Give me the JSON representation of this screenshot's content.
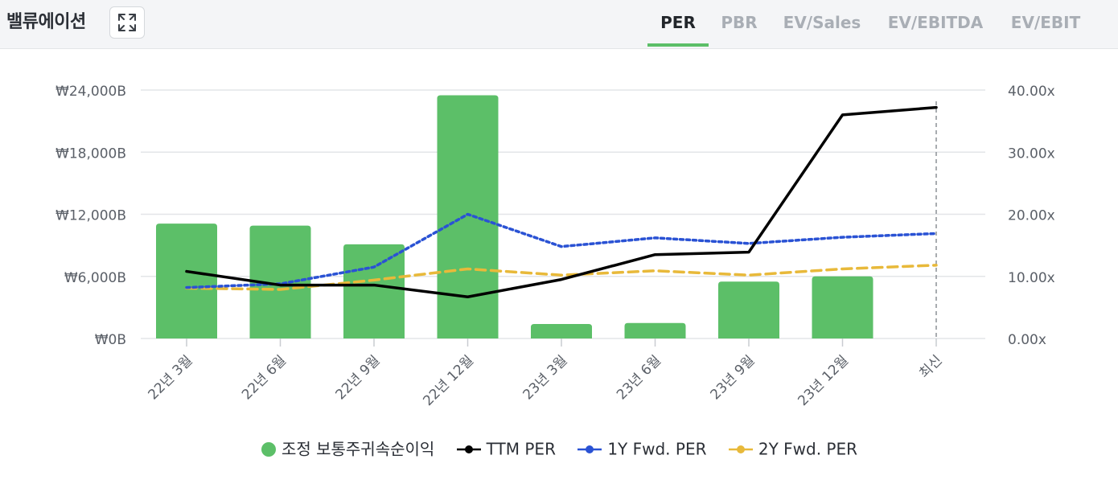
{
  "header": {
    "title": "밸류에이션",
    "tabs": [
      {
        "label": "PER",
        "active": true
      },
      {
        "label": "PBR",
        "active": false
      },
      {
        "label": "EV/Sales",
        "active": false
      },
      {
        "label": "EV/EBITDA",
        "active": false
      },
      {
        "label": "EV/EBIT",
        "active": false
      }
    ]
  },
  "colors": {
    "bar": "#5cbf68",
    "ttm": "#000000",
    "fwd1": "#2a52d4",
    "fwd2": "#e8b93a",
    "grid": "#e3e5e8",
    "axis_text": "#5b6068"
  },
  "chart_data": {
    "type": "bar",
    "categories": [
      "22년 3월",
      "22년 6월",
      "22년 9월",
      "22년 12월",
      "23년 3월",
      "23년 6월",
      "23년 9월",
      "23년 12월",
      "최신"
    ],
    "left_axis": {
      "ticks": [
        "₩0B",
        "₩6,000B",
        "₩12,000B",
        "₩18,000B",
        "₩24,000B"
      ],
      "range": [
        0,
        24000
      ]
    },
    "right_axis": {
      "ticks": [
        "0.00x",
        "10.00x",
        "20.00x",
        "30.00x",
        "40.00x"
      ],
      "range": [
        0,
        40
      ]
    },
    "grid": true,
    "legend_position": "bottom-center",
    "series": [
      {
        "name": "조정 보통주귀속순이익",
        "type": "bar",
        "axis": "left",
        "values": [
          11100,
          10900,
          9100,
          23500,
          1400,
          1500,
          5500,
          6000,
          null
        ]
      },
      {
        "name": "TTM PER",
        "type": "line",
        "axis": "right",
        "style": "solid",
        "values": [
          10.8,
          8.6,
          8.6,
          6.7,
          9.5,
          13.5,
          13.9,
          36.0,
          37.2
        ]
      },
      {
        "name": "1Y Fwd. PER",
        "type": "line",
        "axis": "right",
        "style": "dotted",
        "values": [
          8.2,
          8.8,
          11.5,
          20.0,
          14.8,
          16.2,
          15.3,
          16.3,
          16.9
        ]
      },
      {
        "name": "2Y Fwd. PER",
        "type": "line",
        "axis": "right",
        "style": "dashed",
        "values": [
          8.1,
          7.9,
          9.4,
          11.2,
          10.2,
          10.9,
          10.2,
          11.2,
          11.8
        ]
      }
    ]
  }
}
